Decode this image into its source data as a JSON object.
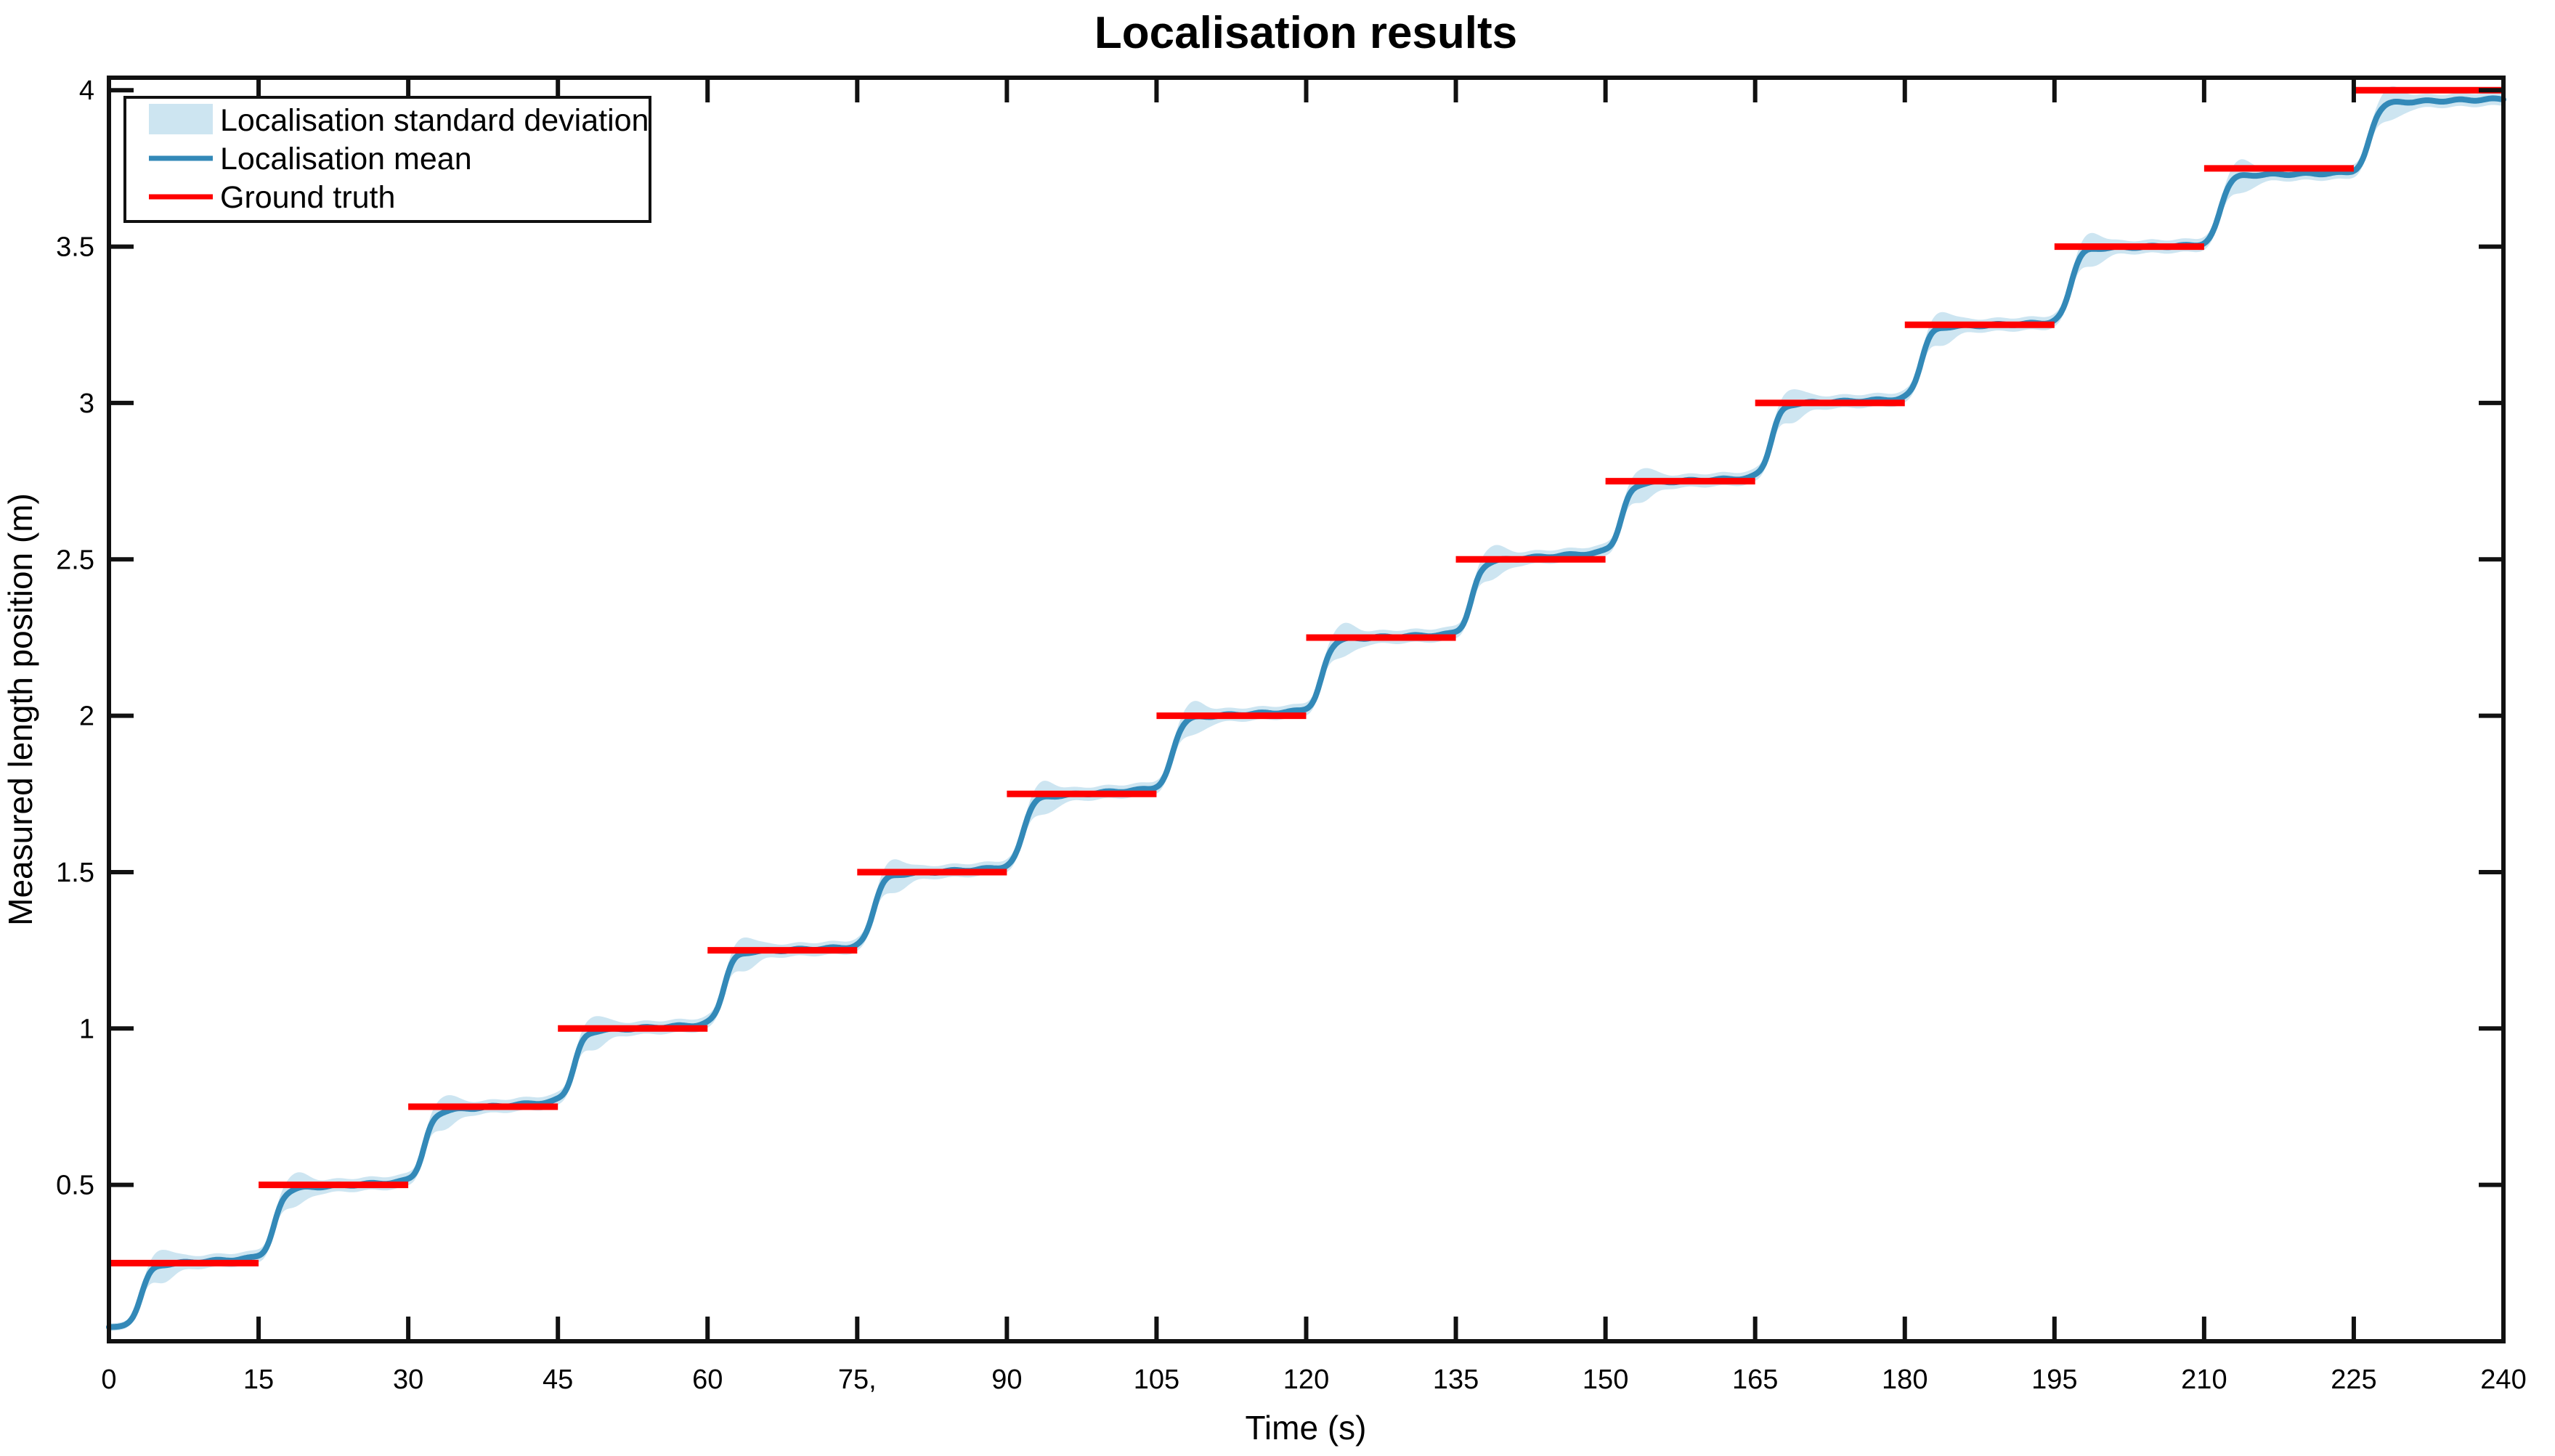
{
  "figure": {
    "background": "#ffffff",
    "axis_color": "#111111"
  },
  "chart_data": {
    "type": "line",
    "title": "Localisation results",
    "xlabel": "Time (s)",
    "ylabel": "Measured length position (m)",
    "xlim": [
      0,
      240
    ],
    "ylim": [
      0,
      4.04
    ],
    "grid": false,
    "box": true,
    "xticks": [
      0,
      15,
      30,
      45,
      60,
      75,
      90,
      105,
      120,
      135,
      150,
      165,
      180,
      195,
      210,
      225,
      240
    ],
    "xtick_labels": [
      "0",
      "15",
      "30",
      "45",
      "60",
      "75,",
      "90",
      "105",
      "120",
      "135",
      "150",
      "165",
      "180",
      "195",
      "210",
      "225",
      "240"
    ],
    "yticks": [
      0.5,
      1,
      1.5,
      2,
      2.5,
      3,
      3.5,
      4
    ],
    "ytick_labels": [
      "0.5",
      "1",
      "1.5",
      "2",
      "2.5",
      "3",
      "3.5",
      "4"
    ],
    "legend": {
      "position": "top-left",
      "entries": [
        {
          "label": "Localisation standard deviation",
          "type": "patch",
          "color": "#cde5f1"
        },
        {
          "label": "Localisation mean",
          "type": "line",
          "color": "#3389b8"
        },
        {
          "label": "Ground truth",
          "type": "line",
          "color": "#ff0000"
        }
      ]
    },
    "ground_truth_segments": [
      {
        "t_start": 0,
        "t_end": 15,
        "value": 0.25
      },
      {
        "t_start": 15,
        "t_end": 30,
        "value": 0.5
      },
      {
        "t_start": 30,
        "t_end": 45,
        "value": 0.75
      },
      {
        "t_start": 45,
        "t_end": 60,
        "value": 1.0
      },
      {
        "t_start": 60,
        "t_end": 75,
        "value": 1.25
      },
      {
        "t_start": 75,
        "t_end": 90,
        "value": 1.5
      },
      {
        "t_start": 90,
        "t_end": 105,
        "value": 1.75
      },
      {
        "t_start": 105,
        "t_end": 120,
        "value": 2.0
      },
      {
        "t_start": 120,
        "t_end": 135,
        "value": 2.25
      },
      {
        "t_start": 135,
        "t_end": 150,
        "value": 2.5
      },
      {
        "t_start": 150,
        "t_end": 165,
        "value": 2.75
      },
      {
        "t_start": 165,
        "t_end": 180,
        "value": 3.0
      },
      {
        "t_start": 180,
        "t_end": 195,
        "value": 3.25
      },
      {
        "t_start": 195,
        "t_end": 210,
        "value": 3.5
      },
      {
        "t_start": 210,
        "t_end": 225,
        "value": 3.75
      },
      {
        "t_start": 225,
        "t_end": 240,
        "value": 4.0
      }
    ],
    "localisation_mean": {
      "description": "staircase: starts at 0.045 m, rises ~1.6 s after each 15 s step to successive 0.25 m levels",
      "initial_value": 0.045,
      "first_rise_center": 3.2,
      "step_times": [
        15,
        30,
        45,
        60,
        75,
        90,
        105,
        120,
        135,
        150,
        165,
        180,
        195,
        210,
        225
      ],
      "plateau_levels": [
        0.25,
        0.5,
        0.75,
        1.0,
        1.25,
        1.5,
        1.75,
        2.0,
        2.25,
        2.5,
        2.75,
        3.0,
        3.25,
        3.5,
        3.75,
        4.0
      ],
      "transition_center_offset": 1.6,
      "transition_tau": 0.5,
      "plateau_bias_start": [
        -0.014,
        -0.016,
        -0.02,
        -0.012,
        -0.01,
        -0.014,
        -0.016,
        -0.01,
        -0.008,
        -0.012,
        -0.01,
        -0.006,
        -0.01,
        -0.008,
        -0.024,
        -0.042
      ],
      "plateau_bias_end": [
        0.016,
        0.01,
        0.016,
        0.012,
        0.01,
        0.014,
        0.016,
        0.015,
        0.01,
        0.022,
        0.01,
        0.012,
        0.006,
        0.004,
        -0.014,
        -0.028
      ],
      "wiggle_amp": 0.003
    },
    "std_band": {
      "base_halfwidth": 0.021,
      "post_rise_bump_up": 0.03,
      "post_rise_bump_down": 0.036,
      "bump_center_offset": 2.1,
      "bump_sigma": 1.5,
      "initial_halfwidth": 0.012
    }
  }
}
